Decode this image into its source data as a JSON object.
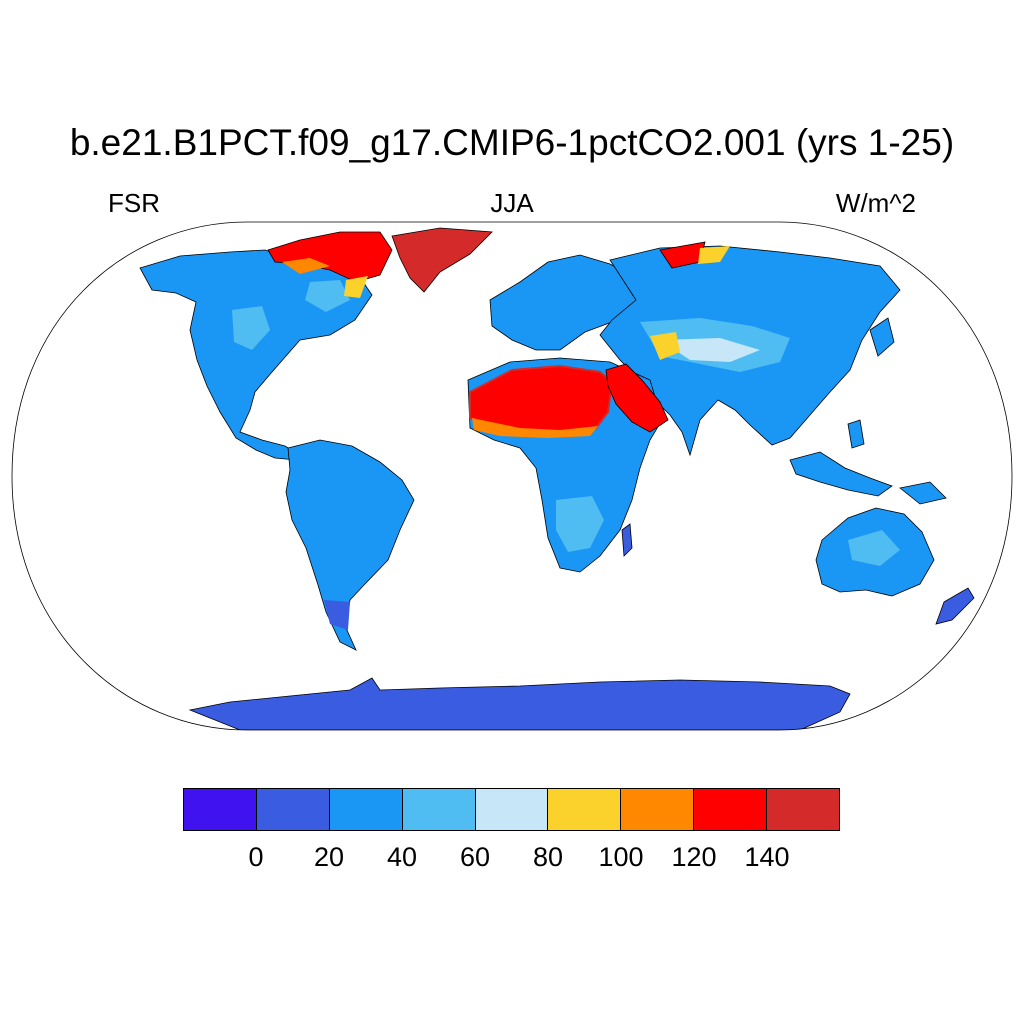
{
  "header": {
    "title": "b.e21.B1PCT.f09_g17.CMIP6-1pctCO2.001 (yrs 1-25)",
    "variable": "FSR",
    "season": "JJA",
    "units": "W/m^2"
  },
  "map": {
    "projection": "robinson",
    "ocean_color": "#ffffff",
    "coastline_color": "#000000",
    "regions": [
      {
        "name": "Greenland",
        "value_range": [
          140,
          160
        ]
      },
      {
        "name": "Sahara",
        "value_range": [
          120,
          160
        ]
      },
      {
        "name": "Arabian Peninsula",
        "value_range": [
          120,
          160
        ]
      },
      {
        "name": "Canadian Arctic Archipelago",
        "value_range": [
          100,
          160
        ]
      },
      {
        "name": "Antarctica",
        "value_range": [
          0,
          20
        ]
      },
      {
        "name": "Tibetan Plateau / Central Asia",
        "value_range": [
          60,
          100
        ]
      },
      {
        "name": "Tropical forests",
        "value_range": [
          20,
          40
        ]
      }
    ]
  },
  "colorbar": {
    "colors": [
      "#4112f0",
      "#3a5ce0",
      "#1a96f5",
      "#4fbdf2",
      "#c7e6f7",
      "#fbd22c",
      "#ff8800",
      "#ff0000",
      "#d42a2a"
    ],
    "labels": [
      "0",
      "20",
      "40",
      "60",
      "80",
      "100",
      "120",
      "140"
    ]
  }
}
